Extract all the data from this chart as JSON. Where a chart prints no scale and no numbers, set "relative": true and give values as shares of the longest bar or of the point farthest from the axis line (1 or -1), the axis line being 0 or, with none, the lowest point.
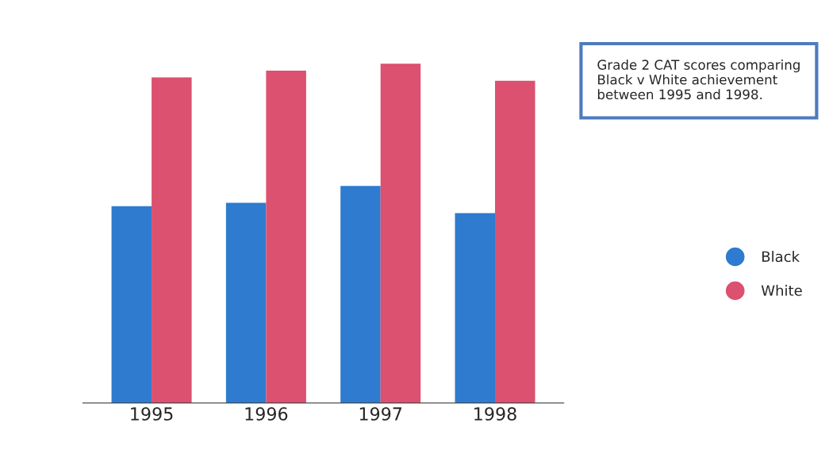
{
  "chart_data": {
    "type": "bar",
    "relative": true,
    "categories": [
      "1995",
      "1996",
      "1997",
      "1998"
    ],
    "series": [
      {
        "name": "Black",
        "color": "#2e7bcf",
        "values": [
          0.58,
          0.59,
          0.64,
          0.56
        ]
      },
      {
        "name": "White",
        "color": "#dc5070",
        "values": [
          0.96,
          0.98,
          1,
          0.95
        ]
      }
    ],
    "annotations": [
      "Grade 2 CAT scores comparing Black v White achievement between 1995 and 1998."
    ],
    "legend": "right"
  }
}
